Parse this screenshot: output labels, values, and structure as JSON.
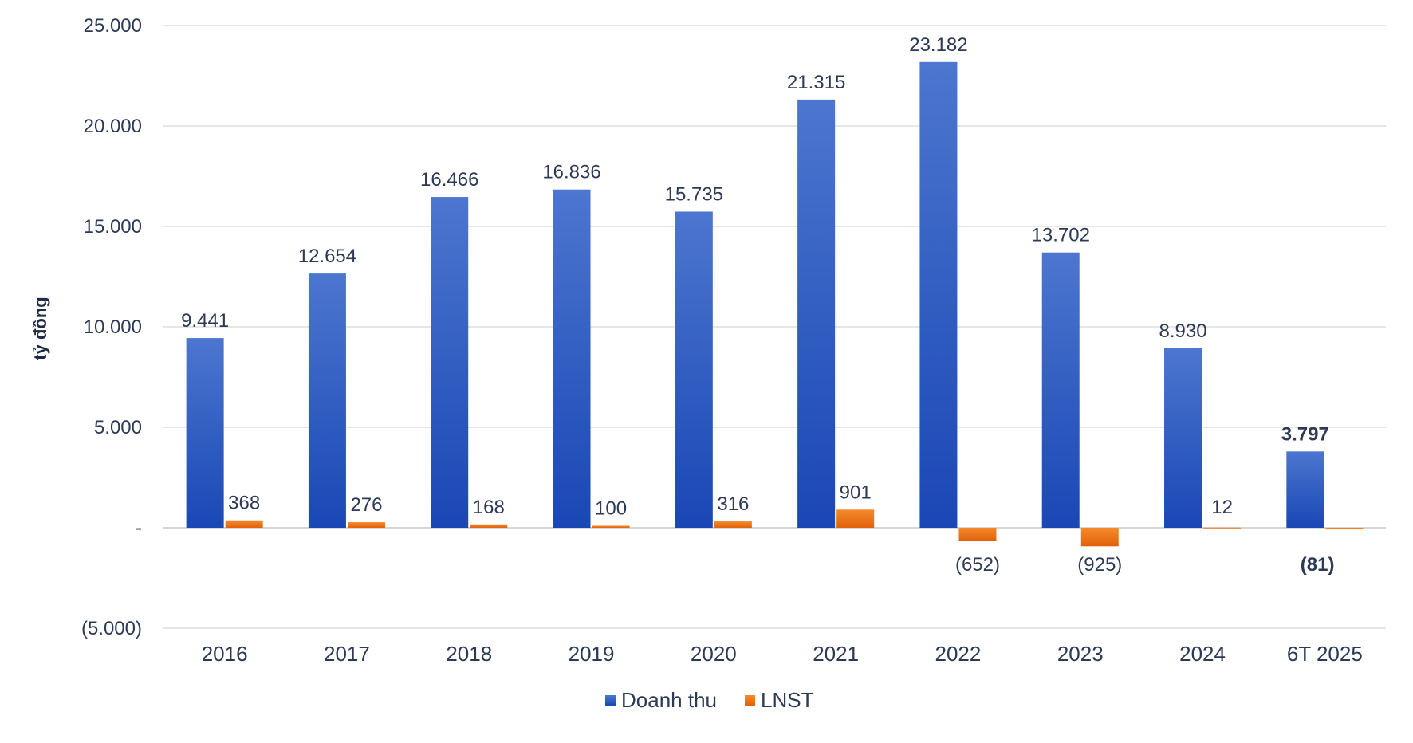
{
  "chart_data": {
    "type": "bar",
    "ylabel": "tỷ đồng",
    "ylim": [
      -5000,
      25000
    ],
    "yticks": [
      -5000,
      0,
      5000,
      10000,
      15000,
      20000,
      25000
    ],
    "ytick_labels": [
      "(5.000)",
      "-",
      "5.000",
      "10.000",
      "15.000",
      "20.000",
      "25.000"
    ],
    "grid": true,
    "legend_position": "bottom",
    "categories": [
      "2016",
      "2017",
      "2018",
      "2019",
      "2020",
      "2021",
      "2022",
      "2023",
      "2024",
      "6T 2025"
    ],
    "series": [
      {
        "name": "Doanh thu",
        "color": "#2a55c4",
        "values": [
          9441,
          12654,
          16466,
          16836,
          15735,
          21315,
          23182,
          13702,
          8930,
          3797
        ],
        "labels": [
          "9.441",
          "12.654",
          "16.466",
          "16.836",
          "15.735",
          "21.315",
          "23.182",
          "13.702",
          "8.930",
          "3.797"
        ]
      },
      {
        "name": "LNST",
        "color": "#f07010",
        "values": [
          368,
          276,
          168,
          100,
          316,
          901,
          -652,
          -925,
          12,
          -81
        ],
        "labels": [
          "368",
          "276",
          "168",
          "100",
          "316",
          "901",
          "(652)",
          "(925)",
          "12",
          "(81)"
        ]
      }
    ]
  }
}
